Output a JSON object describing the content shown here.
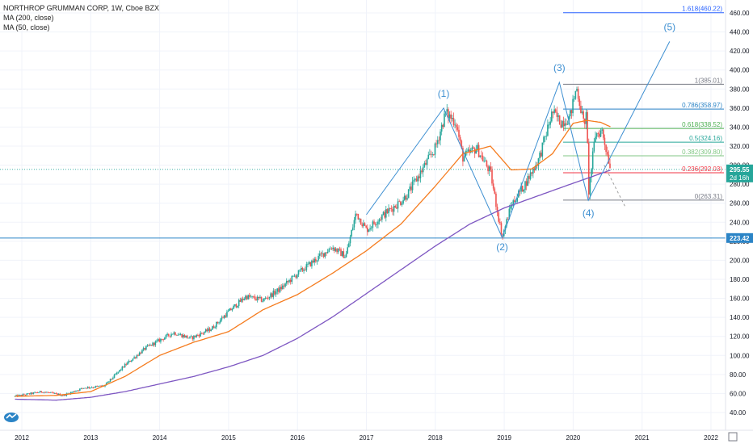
{
  "header": {
    "title": "NORTHROP GRUMMAN CORP, 1W, Cboe BZX",
    "indicators": [
      "MA (200, close)",
      "MA (50, close)"
    ]
  },
  "colors": {
    "up": "#26a69a",
    "down": "#ef5350",
    "ma50": "#f57c1f",
    "ma200": "#7e57c2",
    "wave": "#3d8fd1",
    "price_label": "#26a69a",
    "level_label": "#2b84c6"
  },
  "chart_data": {
    "type": "candlestick",
    "title": "NORTHROP GRUMMAN CORP, 1W, Cboe BZX",
    "x_ticks": [
      "2012",
      "2013",
      "2014",
      "2015",
      "2016",
      "2017",
      "2018",
      "2019",
      "2020",
      "2021",
      "2022"
    ],
    "y_ticks": [
      "40.00",
      "60.00",
      "80.00",
      "100.00",
      "120.00",
      "140.00",
      "160.00",
      "180.00",
      "200.00",
      "220.00",
      "240.00",
      "260.00",
      "280.00",
      "300.00",
      "320.00",
      "340.00",
      "360.00",
      "380.00",
      "400.00",
      "420.00",
      "440.00",
      "460.00"
    ],
    "ylim": [
      35,
      465
    ],
    "grid": true,
    "price_anchors": [
      [
        2011.9,
        57
      ],
      [
        2012.3,
        62
      ],
      [
        2012.6,
        58
      ],
      [
        2012.9,
        66
      ],
      [
        2013.2,
        68
      ],
      [
        2013.5,
        90
      ],
      [
        2013.8,
        108
      ],
      [
        2014.0,
        116
      ],
      [
        2014.2,
        124
      ],
      [
        2014.45,
        118
      ],
      [
        2014.75,
        128
      ],
      [
        2015.0,
        146
      ],
      [
        2015.25,
        162
      ],
      [
        2015.5,
        158
      ],
      [
        2015.75,
        170
      ],
      [
        2016.0,
        186
      ],
      [
        2016.25,
        200
      ],
      [
        2016.5,
        214
      ],
      [
        2016.7,
        204
      ],
      [
        2016.85,
        250
      ],
      [
        2017.0,
        232
      ],
      [
        2017.25,
        248
      ],
      [
        2017.5,
        262
      ],
      [
        2017.6,
        270
      ],
      [
        2017.85,
        300
      ],
      [
        2018.0,
        318
      ],
      [
        2018.15,
        355
      ],
      [
        2018.3,
        345
      ],
      [
        2018.4,
        308
      ],
      [
        2018.6,
        318
      ],
      [
        2018.8,
        292
      ],
      [
        2018.97,
        224
      ],
      [
        2019.1,
        258
      ],
      [
        2019.3,
        280
      ],
      [
        2019.5,
        306
      ],
      [
        2019.7,
        356
      ],
      [
        2019.82,
        345
      ],
      [
        2019.95,
        350
      ],
      [
        2020.05,
        382
      ],
      [
        2020.15,
        345
      ],
      [
        2020.2,
        352
      ],
      [
        2020.22,
        268
      ],
      [
        2020.32,
        332
      ],
      [
        2020.42,
        336
      ],
      [
        2020.5,
        310
      ],
      [
        2020.55,
        296
      ]
    ],
    "ma50_anchors": [
      [
        2011.9,
        57
      ],
      [
        2012.5,
        58
      ],
      [
        2013.0,
        62
      ],
      [
        2013.5,
        78
      ],
      [
        2014.0,
        100
      ],
      [
        2014.5,
        114
      ],
      [
        2015.0,
        125
      ],
      [
        2015.5,
        148
      ],
      [
        2016.0,
        164
      ],
      [
        2016.5,
        186
      ],
      [
        2017.0,
        210
      ],
      [
        2017.5,
        238
      ],
      [
        2018.0,
        278
      ],
      [
        2018.4,
        312
      ],
      [
        2018.8,
        320
      ],
      [
        2019.1,
        295
      ],
      [
        2019.4,
        296
      ],
      [
        2019.7,
        312
      ],
      [
        2020.0,
        344
      ],
      [
        2020.2,
        347
      ],
      [
        2020.4,
        345
      ],
      [
        2020.55,
        340
      ]
    ],
    "ma200_anchors": [
      [
        2011.9,
        54
      ],
      [
        2012.5,
        53
      ],
      [
        2013.0,
        56
      ],
      [
        2013.5,
        62
      ],
      [
        2014.0,
        70
      ],
      [
        2014.5,
        78
      ],
      [
        2015.0,
        88
      ],
      [
        2015.5,
        100
      ],
      [
        2016.0,
        118
      ],
      [
        2016.5,
        140
      ],
      [
        2017.0,
        165
      ],
      [
        2017.5,
        190
      ],
      [
        2018.0,
        215
      ],
      [
        2018.5,
        238
      ],
      [
        2019.0,
        255
      ],
      [
        2019.5,
        268
      ],
      [
        2020.0,
        281
      ],
      [
        2020.55,
        295
      ]
    ],
    "elliott_wave": {
      "points": [
        {
          "label": "(1)",
          "x": 2018.12,
          "y": 360
        },
        {
          "label": "(2)",
          "x": 2018.97,
          "y": 224
        },
        {
          "label": "(3)",
          "x": 2019.8,
          "y": 387
        },
        {
          "label": "(4)",
          "x": 2020.22,
          "y": 263
        },
        {
          "label": "(5)",
          "x": 2021.4,
          "y": 430
        }
      ],
      "start": {
        "x": 2017.0,
        "y": 248
      }
    },
    "fib_levels": [
      {
        "label": "1.618(460.22)",
        "value": 460.22
      },
      {
        "label": "1(385.01)",
        "value": 385.01
      },
      {
        "label": "0.786(358.97)",
        "value": 358.97
      },
      {
        "label": "0.618(338.52)",
        "value": 338.52
      },
      {
        "label": "0.5(324.16)",
        "value": 324.16
      },
      {
        "label": "0.382(309.80)",
        "value": 309.8
      },
      {
        "label": "0.236(292.03)",
        "value": 292.03
      },
      {
        "label": "0(263.31)",
        "value": 263.31
      }
    ],
    "horizontal_line": {
      "label": "223.42",
      "value": 223.42
    },
    "last_price": {
      "label": "295.55",
      "value": 295.55,
      "countdown": "2d 16h"
    }
  }
}
